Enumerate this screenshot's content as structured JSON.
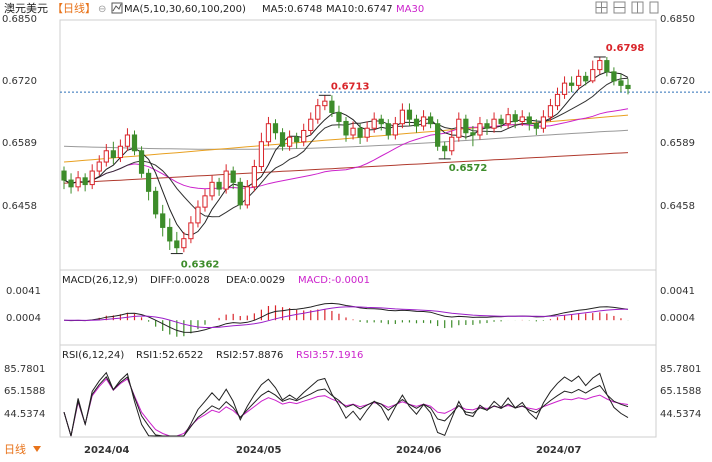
{
  "header": {
    "symbol": "澳元美元",
    "period": "【日线】",
    "ma_title": "MA(5,10,30,60,100,200)",
    "ma5": "MA5:0.6748",
    "ma10": "MA10:0.6747",
    "ma30": "MA30"
  },
  "footer": {
    "period_tab": "日线"
  },
  "colors": {
    "up": "#d9242a",
    "down": "#3d8c2a",
    "ma5": "#222222",
    "ma10": "#333333",
    "ma30": "#cc22cc",
    "ma60": "#e8a020",
    "ma100": "#999999",
    "ma200": "#b03a2e",
    "diff": "#222222",
    "dea": "#9b1fc9",
    "rsi1": "#222222",
    "rsi2": "#222222",
    "rsi3": "#cc22cc"
  },
  "chart_data": [
    {
      "type": "candlestick",
      "x": [
        "2024/04",
        "2024/05",
        "2024/06",
        "2024/07"
      ],
      "y_ticks": [
        "0.6850",
        "0.6720",
        "0.6589",
        "0.6458"
      ],
      "ylim": [
        0.633,
        0.688
      ],
      "annotations": [
        {
          "label": "0.6798",
          "value": 0.6798,
          "color": "#d9242a"
        },
        {
          "label": "0.6713",
          "value": 0.6713,
          "color": "#d9242a"
        },
        {
          "label": "0.6572",
          "value": 0.6572,
          "color": "#3d8c2a"
        },
        {
          "label": "0.6362",
          "value": 0.6362,
          "color": "#3d8c2a"
        }
      ],
      "reference_line": 0.672,
      "candles": [
        [
          0.6545,
          0.6525,
          0.6555,
          0.6505
        ],
        [
          0.6525,
          0.651,
          0.654,
          0.6495
        ],
        [
          0.651,
          0.653,
          0.6545,
          0.65
        ],
        [
          0.653,
          0.6515,
          0.654,
          0.65
        ],
        [
          0.6515,
          0.6545,
          0.656,
          0.6505
        ],
        [
          0.6545,
          0.6565,
          0.658,
          0.6535
        ],
        [
          0.6565,
          0.659,
          0.6605,
          0.6555
        ],
        [
          0.659,
          0.6575,
          0.661,
          0.656
        ],
        [
          0.6575,
          0.66,
          0.6615,
          0.6565
        ],
        [
          0.66,
          0.6625,
          0.664,
          0.659
        ],
        [
          0.6625,
          0.659,
          0.6635,
          0.658
        ],
        [
          0.659,
          0.654,
          0.66,
          0.653
        ],
        [
          0.654,
          0.65,
          0.655,
          0.648
        ],
        [
          0.65,
          0.645,
          0.651,
          0.644
        ],
        [
          0.645,
          0.642,
          0.647,
          0.64
        ],
        [
          0.642,
          0.639,
          0.644,
          0.637
        ],
        [
          0.639,
          0.6375,
          0.641,
          0.6362
        ],
        [
          0.6375,
          0.6395,
          0.641,
          0.6365
        ],
        [
          0.6395,
          0.643,
          0.6445,
          0.6385
        ],
        [
          0.643,
          0.6465,
          0.648,
          0.642
        ],
        [
          0.6465,
          0.649,
          0.6505,
          0.6455
        ],
        [
          0.649,
          0.652,
          0.6535,
          0.648
        ],
        [
          0.652,
          0.6505,
          0.653,
          0.649
        ],
        [
          0.6505,
          0.6545,
          0.656,
          0.6495
        ],
        [
          0.6545,
          0.652,
          0.6555,
          0.6505
        ],
        [
          0.652,
          0.647,
          0.653,
          0.646
        ],
        [
          0.647,
          0.651,
          0.6525,
          0.6462
        ],
        [
          0.651,
          0.6555,
          0.657,
          0.65
        ],
        [
          0.6555,
          0.661,
          0.663,
          0.6545
        ],
        [
          0.661,
          0.665,
          0.6665,
          0.66
        ],
        [
          0.665,
          0.663,
          0.666,
          0.6615
        ],
        [
          0.663,
          0.66,
          0.664,
          0.659
        ],
        [
          0.66,
          0.662,
          0.6635,
          0.659
        ],
        [
          0.662,
          0.661,
          0.663,
          0.6595
        ],
        [
          0.661,
          0.6635,
          0.665,
          0.66
        ],
        [
          0.6635,
          0.666,
          0.6675,
          0.6625
        ],
        [
          0.666,
          0.669,
          0.6705,
          0.665
        ],
        [
          0.669,
          0.67,
          0.6713,
          0.668
        ],
        [
          0.67,
          0.6675,
          0.6713,
          0.6665
        ],
        [
          0.6675,
          0.6655,
          0.669,
          0.664
        ],
        [
          0.6655,
          0.6625,
          0.6665,
          0.661
        ],
        [
          0.6625,
          0.664,
          0.6655,
          0.6615
        ],
        [
          0.664,
          0.662,
          0.665,
          0.6605
        ],
        [
          0.662,
          0.664,
          0.6655,
          0.661
        ],
        [
          0.664,
          0.666,
          0.6675,
          0.663
        ],
        [
          0.666,
          0.665,
          0.667,
          0.6635
        ],
        [
          0.665,
          0.6625,
          0.666,
          0.6615
        ],
        [
          0.6625,
          0.665,
          0.6665,
          0.6615
        ],
        [
          0.665,
          0.668,
          0.6695,
          0.664
        ],
        [
          0.668,
          0.666,
          0.6695,
          0.6645
        ],
        [
          0.666,
          0.6645,
          0.667,
          0.663
        ],
        [
          0.6645,
          0.6665,
          0.668,
          0.6635
        ],
        [
          0.6665,
          0.665,
          0.6675,
          0.664
        ],
        [
          0.665,
          0.66,
          0.666,
          0.659
        ],
        [
          0.66,
          0.659,
          0.661,
          0.6572
        ],
        [
          0.659,
          0.662,
          0.6635,
          0.658
        ],
        [
          0.662,
          0.666,
          0.6675,
          0.661
        ],
        [
          0.666,
          0.663,
          0.667,
          0.6615
        ],
        [
          0.663,
          0.6625,
          0.6645,
          0.66
        ],
        [
          0.6625,
          0.665,
          0.6665,
          0.6615
        ],
        [
          0.665,
          0.664,
          0.666,
          0.6625
        ],
        [
          0.664,
          0.666,
          0.6675,
          0.663
        ],
        [
          0.666,
          0.665,
          0.667,
          0.664
        ],
        [
          0.665,
          0.667,
          0.6685,
          0.664
        ],
        [
          0.667,
          0.6655,
          0.668,
          0.664
        ],
        [
          0.6655,
          0.6665,
          0.668,
          0.6645
        ],
        [
          0.6665,
          0.665,
          0.6675,
          0.6635
        ],
        [
          0.665,
          0.664,
          0.666,
          0.6625
        ],
        [
          0.664,
          0.6665,
          0.668,
          0.663
        ],
        [
          0.6665,
          0.669,
          0.6705,
          0.6655
        ],
        [
          0.669,
          0.6715,
          0.673,
          0.668
        ],
        [
          0.6715,
          0.674,
          0.6755,
          0.6705
        ],
        [
          0.674,
          0.6735,
          0.6755,
          0.672
        ],
        [
          0.6735,
          0.6755,
          0.677,
          0.6725
        ],
        [
          0.6755,
          0.6745,
          0.6765,
          0.6735
        ],
        [
          0.6745,
          0.677,
          0.679,
          0.674
        ],
        [
          0.677,
          0.679,
          0.6798,
          0.676
        ],
        [
          0.679,
          0.6765,
          0.6798,
          0.6755
        ],
        [
          0.6765,
          0.6745,
          0.6775,
          0.6735
        ],
        [
          0.6745,
          0.6735,
          0.676,
          0.672
        ],
        [
          0.6735,
          0.6728,
          0.675,
          0.6715
        ]
      ],
      "ma": {
        "ma5": 0.6748,
        "ma10": 0.6747
      },
      "series": [
        {
          "name": "MA5"
        },
        {
          "name": "MA10"
        },
        {
          "name": "MA30"
        }
      ]
    },
    {
      "type": "macd",
      "title": "MACD(26,12,9)",
      "diff_label": "DIFF:0.0028",
      "dea_label": "DEA:0.0029",
      "macd_label": "MACD:-0.0001",
      "y_ticks": [
        "0.0041",
        "0.0004"
      ],
      "ylim": [
        -0.003,
        0.0055
      ],
      "diff": 0.0028,
      "dea": 0.0029,
      "macd": -0.0001
    },
    {
      "type": "line",
      "title": "RSI(6,12,24)",
      "rsi1_label": "RSI1:52.6522",
      "rsi2_label": "RSI2:57.8876",
      "rsi3_label": "RSI3:57.1916",
      "y_ticks": [
        "85.7801",
        "65.1588",
        "44.5374"
      ],
      "ylim": [
        30,
        92
      ],
      "rsi1": 52.6522,
      "rsi2": 57.8876,
      "rsi3": 57.1916
    }
  ]
}
